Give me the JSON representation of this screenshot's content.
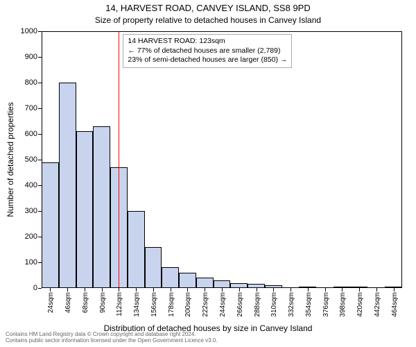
{
  "title": "14, HARVEST ROAD, CANVEY ISLAND, SS8 9PD",
  "subtitle": "Size of property relative to detached houses in Canvey Island",
  "ylabel": "Number of detached properties",
  "xlabel": "Distribution of detached houses by size in Canvey Island",
  "footnote": "Contains HM Land Registry data © Crown copyright and database right 2024.\nContains public sector information licensed under the Open Government Licence v3.0.",
  "chart": {
    "type": "histogram",
    "ylim": [
      0,
      1000
    ],
    "ytick_step": 100,
    "xtick_labels": [
      "24sqm",
      "46sqm",
      "68sqm",
      "90sqm",
      "112sqm",
      "134sqm",
      "156sqm",
      "178sqm",
      "200sqm",
      "222sqm",
      "244sqm",
      "266sqm",
      "288sqm",
      "310sqm",
      "332sqm",
      "354sqm",
      "376sqm",
      "398sqm",
      "420sqm",
      "442sqm",
      "464sqm"
    ],
    "bar_values": [
      490,
      800,
      610,
      630,
      470,
      300,
      160,
      80,
      60,
      40,
      30,
      20,
      15,
      10,
      0,
      5,
      0,
      5,
      5,
      0,
      5
    ],
    "bar_fill": "#c8d4ed",
    "bar_stroke": "#000000",
    "refline_x_index": 4.5,
    "refline_color": "#ff0000",
    "background_color": "#ffffff",
    "axis_color": "#000000",
    "tick_fontsize": 11,
    "label_fontsize": 12,
    "title_fontsize": 13
  },
  "annotation": {
    "line1": "14 HARVEST ROAD: 123sqm",
    "line2": "← 77% of detached houses are smaller (2,789)",
    "line3": "23% of semi-detached houses are larger (850) →"
  }
}
